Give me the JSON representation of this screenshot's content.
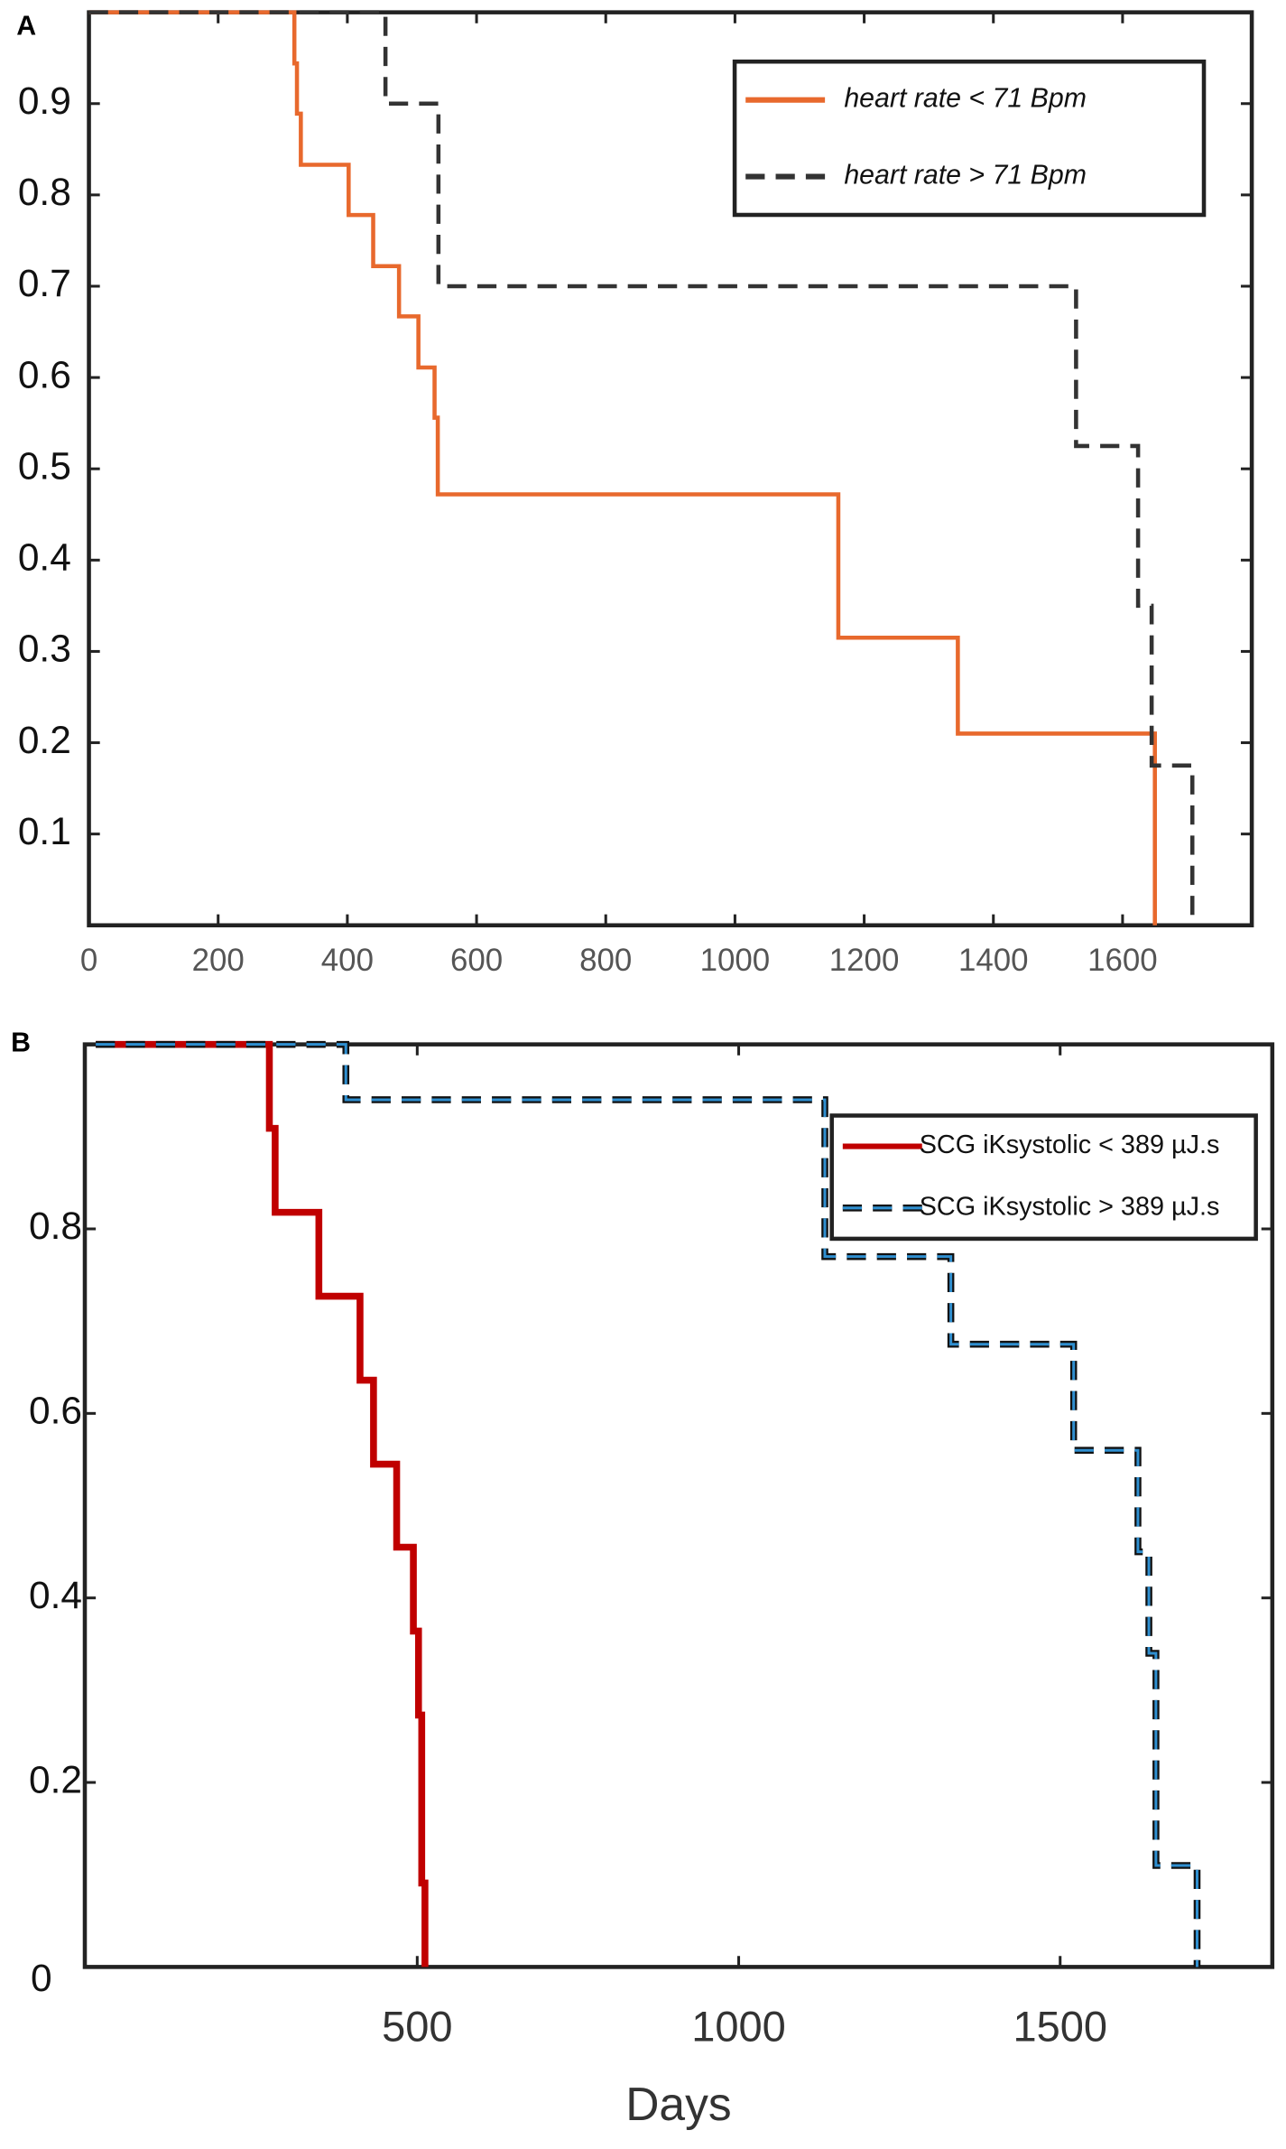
{
  "chart_data": [
    {
      "type": "line",
      "step": true,
      "panel": "A",
      "xlim": [
        0,
        1800
      ],
      "ylim": [
        0,
        1
      ],
      "xticks": [
        0,
        200,
        400,
        600,
        800,
        1000,
        1200,
        1400,
        1600
      ],
      "yticks": [
        0.1,
        0.2,
        0.3,
        0.4,
        0.5,
        0.6,
        0.7,
        0.8,
        0.9
      ],
      "series": [
        {
          "name": "heart rate < 71 Bpm",
          "color": "#e8692d",
          "style": "solid",
          "x": [
            0,
            318,
            322,
            328,
            402,
            440,
            480,
            510,
            535,
            540,
            1160,
            1345,
            1650
          ],
          "values": [
            1,
            0.944,
            0.889,
            0.833,
            0.778,
            0.722,
            0.667,
            0.611,
            0.556,
            0.472,
            0.315,
            0.21,
            0
          ]
        },
        {
          "name": "heart rate > 71 Bpm",
          "color": "#333333",
          "style": "dashed",
          "x": [
            0,
            459,
            541,
            1528,
            1624,
            1645,
            1708
          ],
          "values": [
            1,
            0.9,
            0.7,
            0.525,
            0.35,
            0.175,
            0
          ]
        }
      ]
    },
    {
      "type": "line",
      "step": true,
      "panel": "B",
      "xlabel": "Days",
      "xlim": [
        0,
        1830
      ],
      "ylim": [
        0,
        1
      ],
      "xticks": [
        500,
        1000,
        1500
      ],
      "yticks": [
        0,
        0.2,
        0.4,
        0.6,
        0.8
      ],
      "series": [
        {
          "name": "SCG iKsystolic < 389 µJ.s",
          "color": "#c00000",
          "style": "solid",
          "x": [
            0,
            270,
            279,
            347,
            411,
            432,
            468,
            494,
            502,
            507,
            512
          ],
          "values": [
            1,
            0.909,
            0.818,
            0.727,
            0.636,
            0.545,
            0.455,
            0.364,
            0.273,
            0.091,
            0
          ]
        },
        {
          "name": "SCG iKsystolic > 389 µJ.s",
          "color": "#2f8fd0",
          "style": "dashed",
          "x": [
            0,
            389,
            1134,
            1330,
            1521,
            1621,
            1638,
            1649,
            1713
          ],
          "values": [
            1,
            0.94,
            0.77,
            0.675,
            0.56,
            0.45,
            0.34,
            0.11,
            0
          ]
        }
      ]
    }
  ]
}
